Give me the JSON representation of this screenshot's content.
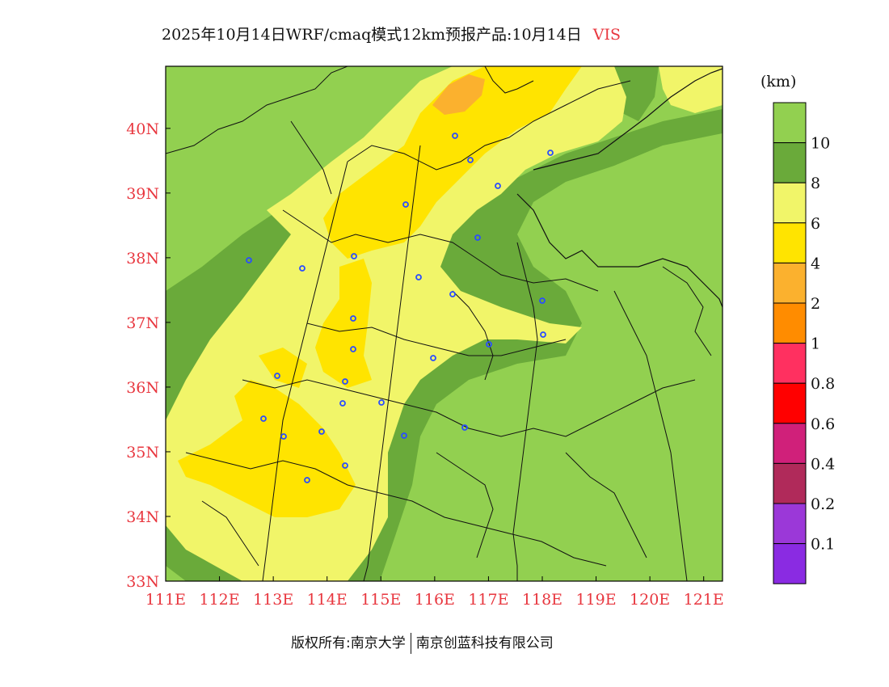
{
  "title": {
    "text": "2025年10月14日WRF/cmaq模式12km预报产品:10月14日",
    "variable": "VIS"
  },
  "map": {
    "lat_ticks": [
      "33N",
      "34N",
      "35N",
      "36N",
      "37N",
      "38N",
      "39N",
      "40N"
    ],
    "lon_ticks": [
      "111E",
      "112E",
      "113E",
      "114E",
      "115E",
      "116E",
      "117E",
      "118E",
      "119E",
      "120E",
      "121E"
    ],
    "axis_label_color": "#e8373f"
  },
  "legend": {
    "unit": "(km)",
    "labels": [
      "10",
      "8",
      "6",
      "4",
      "2",
      "1",
      "0.8",
      "0.6",
      "0.4",
      "0.2",
      "0.1"
    ],
    "colors": [
      "#92d050",
      "#6aaa3a",
      "#f1f569",
      "#ffe400",
      "#fbb12e",
      "#ff8c00",
      "#ff3060",
      "#ff0000",
      "#d0207a",
      "#b02a5a",
      "#9b38d8",
      "#8a2be2"
    ]
  },
  "footer": {
    "copyright": "版权所有:南京大学",
    "company": "南京创蓝科技有限公司"
  }
}
